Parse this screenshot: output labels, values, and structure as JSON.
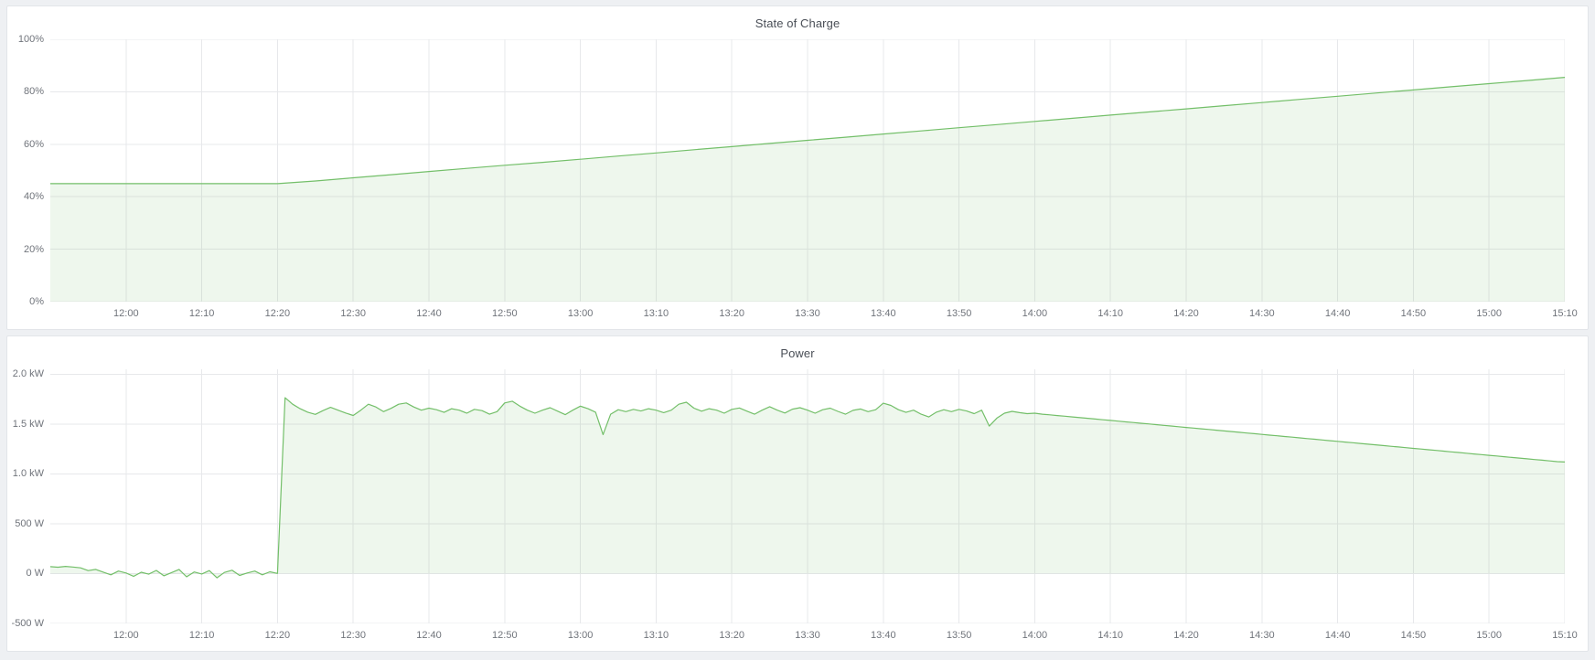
{
  "colors": {
    "page_background": "#eef0f3",
    "panel_background": "#ffffff",
    "panel_border": "#e2e5e9",
    "grid": "#e7e8eb",
    "line_green": "#73bf69",
    "fill_green": "rgba(115,191,105,0.12)",
    "title_text": "#4a4f57",
    "tick_text": "#70747b"
  },
  "chart_data": [
    {
      "type": "area",
      "title": "State of Charge",
      "xlabel": "",
      "ylabel": "",
      "x_start_time": "11:50",
      "x_end_time": "15:10",
      "x_total_min": 200,
      "x_ticks": [
        {
          "label": "12:00",
          "min": 10
        },
        {
          "label": "12:10",
          "min": 20
        },
        {
          "label": "12:20",
          "min": 30
        },
        {
          "label": "12:30",
          "min": 40
        },
        {
          "label": "12:40",
          "min": 50
        },
        {
          "label": "12:50",
          "min": 60
        },
        {
          "label": "13:00",
          "min": 70
        },
        {
          "label": "13:10",
          "min": 80
        },
        {
          "label": "13:20",
          "min": 90
        },
        {
          "label": "13:30",
          "min": 100
        },
        {
          "label": "13:40",
          "min": 110
        },
        {
          "label": "13:50",
          "min": 120
        },
        {
          "label": "14:00",
          "min": 130
        },
        {
          "label": "14:10",
          "min": 140
        },
        {
          "label": "14:20",
          "min": 150
        },
        {
          "label": "14:30",
          "min": 160
        },
        {
          "label": "14:40",
          "min": 170
        },
        {
          "label": "14:50",
          "min": 180
        },
        {
          "label": "15:00",
          "min": 190
        },
        {
          "label": "15:10",
          "min": 200
        }
      ],
      "ylim": [
        0,
        100
      ],
      "y_ticks": [
        {
          "value": 0,
          "label": "0%"
        },
        {
          "value": 20,
          "label": "20%"
        },
        {
          "value": 40,
          "label": "40%"
        },
        {
          "value": 60,
          "label": "60%"
        },
        {
          "value": 80,
          "label": "80%"
        },
        {
          "value": 100,
          "label": "100%"
        }
      ],
      "grid": true,
      "legend": "none",
      "fill_baseline": 0,
      "line_color": "#73bf69",
      "fill_color": "rgba(115,191,105,0.12)",
      "series": [
        {
          "name": "State of Charge",
          "unit": "percent",
          "start_min": 0,
          "step_min": 5,
          "values": [
            45,
            45,
            45,
            45,
            45,
            45,
            45,
            46,
            47.2,
            48.4,
            49.6,
            50.8,
            52,
            53.1,
            54.3,
            55.5,
            56.7,
            57.9,
            59.1,
            60.3,
            61.5,
            62.7,
            63.9,
            65.1,
            66.3,
            67.5,
            68.7,
            69.9,
            71.1,
            72.3,
            73.5,
            74.7,
            75.9,
            77.1,
            78.3,
            79.5,
            80.7,
            81.9,
            83.1,
            84.3,
            85.5
          ]
        }
      ]
    },
    {
      "type": "area",
      "title": "Power",
      "xlabel": "",
      "ylabel": "",
      "x_start_time": "11:50",
      "x_end_time": "15:10",
      "x_total_min": 200,
      "x_ticks": [
        {
          "label": "12:00",
          "min": 10
        },
        {
          "label": "12:10",
          "min": 20
        },
        {
          "label": "12:20",
          "min": 30
        },
        {
          "label": "12:30",
          "min": 40
        },
        {
          "label": "12:40",
          "min": 50
        },
        {
          "label": "12:50",
          "min": 60
        },
        {
          "label": "13:00",
          "min": 70
        },
        {
          "label": "13:10",
          "min": 80
        },
        {
          "label": "13:20",
          "min": 90
        },
        {
          "label": "13:30",
          "min": 100
        },
        {
          "label": "13:40",
          "min": 110
        },
        {
          "label": "13:50",
          "min": 120
        },
        {
          "label": "14:00",
          "min": 130
        },
        {
          "label": "14:10",
          "min": 140
        },
        {
          "label": "14:20",
          "min": 150
        },
        {
          "label": "14:30",
          "min": 160
        },
        {
          "label": "14:40",
          "min": 170
        },
        {
          "label": "14:50",
          "min": 180
        },
        {
          "label": "15:00",
          "min": 190
        },
        {
          "label": "15:10",
          "min": 200
        }
      ],
      "ylim": [
        -500,
        2050
      ],
      "y_ticks": [
        {
          "value": -500,
          "label": "-500 W"
        },
        {
          "value": 0,
          "label": "0 W"
        },
        {
          "value": 500,
          "label": "500 W"
        },
        {
          "value": 1000,
          "label": "1.0 kW"
        },
        {
          "value": 1500,
          "label": "1.5 kW"
        },
        {
          "value": 2000,
          "label": "2.0 kW"
        }
      ],
      "grid": true,
      "legend": "none",
      "fill_baseline": 0,
      "line_color": "#73bf69",
      "fill_color": "rgba(115,191,105,0.12)",
      "series": [
        {
          "name": "Power",
          "unit": "watt",
          "start_min": 0,
          "step_min": 1,
          "values": [
            70,
            64,
            72,
            66,
            58,
            30,
            42,
            15,
            -12,
            26,
            6,
            -28,
            14,
            -6,
            32,
            -22,
            10,
            42,
            -32,
            16,
            -4,
            30,
            -42,
            12,
            34,
            -18,
            6,
            26,
            -12,
            18,
            2,
            1765,
            1700,
            1655,
            1620,
            1598,
            1635,
            1668,
            1640,
            1612,
            1587,
            1640,
            1700,
            1672,
            1625,
            1658,
            1700,
            1712,
            1672,
            1640,
            1660,
            1645,
            1618,
            1655,
            1640,
            1610,
            1648,
            1635,
            1600,
            1625,
            1712,
            1730,
            1680,
            1640,
            1610,
            1640,
            1665,
            1630,
            1595,
            1640,
            1680,
            1655,
            1620,
            1395,
            1600,
            1645,
            1625,
            1648,
            1632,
            1655,
            1640,
            1615,
            1640,
            1700,
            1720,
            1660,
            1630,
            1655,
            1640,
            1610,
            1648,
            1662,
            1630,
            1600,
            1640,
            1675,
            1640,
            1612,
            1650,
            1665,
            1640,
            1610,
            1645,
            1660,
            1628,
            1600,
            1638,
            1652,
            1625,
            1645,
            1710,
            1688,
            1645,
            1618,
            1640,
            1600,
            1572,
            1620,
            1645,
            1625,
            1648,
            1632,
            1605,
            1640,
            1480,
            1560,
            1610,
            1628,
            1615,
            1605,
            1610,
            1600,
            1593,
            1586,
            1579,
            1572,
            1565,
            1558,
            1551,
            1544,
            1537,
            1530,
            1523,
            1516,
            1509,
            1502,
            1495,
            1488,
            1481,
            1474,
            1467,
            1460,
            1453,
            1446,
            1439,
            1432,
            1425,
            1418,
            1411,
            1404,
            1397,
            1390,
            1383,
            1376,
            1369,
            1362,
            1355,
            1348,
            1341,
            1334,
            1327,
            1320,
            1313,
            1306,
            1299,
            1292,
            1285,
            1278,
            1271,
            1264,
            1257,
            1250,
            1243,
            1236,
            1229,
            1222,
            1215,
            1208,
            1201,
            1194,
            1187,
            1180,
            1173,
            1166,
            1159,
            1152,
            1145,
            1138,
            1131,
            1124,
            1120
          ]
        }
      ]
    }
  ]
}
